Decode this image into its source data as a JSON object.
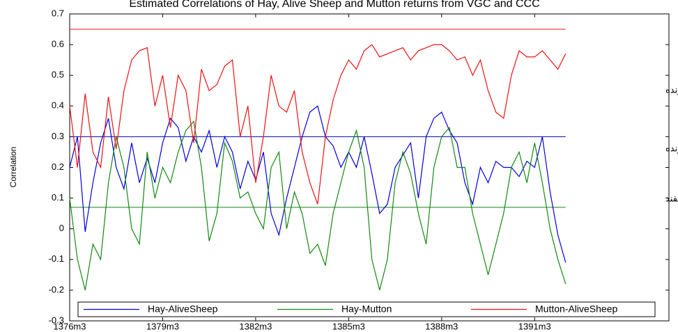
{
  "chart_data": {
    "type": "line",
    "title": "Estimated Correlations of Hay, Alive Sheep and Mutton returns from VGC and CCC",
    "ylabel": "Correlation",
    "x": [
      0,
      3,
      6,
      9,
      12,
      15,
      18,
      21,
      24,
      27,
      30,
      33,
      36,
      39,
      42,
      45,
      48,
      51,
      54,
      57,
      60,
      63,
      66,
      69,
      72,
      75,
      78,
      81,
      84,
      87,
      90,
      93,
      96,
      99,
      102,
      105,
      108,
      111,
      114,
      117,
      120,
      123,
      126,
      129,
      132,
      135,
      138,
      141,
      144,
      147,
      150,
      153,
      156,
      159,
      162,
      165,
      168,
      171,
      174,
      177,
      180,
      183,
      186,
      189,
      192
    ],
    "xlim": [
      0,
      232
    ],
    "xticks": [
      {
        "value": 0,
        "label": "1376m3"
      },
      {
        "value": 36,
        "label": "1379m3"
      },
      {
        "value": 72,
        "label": "1382m3"
      },
      {
        "value": 108,
        "label": "1385m3"
      },
      {
        "value": 144,
        "label": "1388m3"
      },
      {
        "value": 180,
        "label": "1391m3"
      }
    ],
    "ylim": [
      -0.3,
      0.7
    ],
    "yticks": [
      -0.3,
      -0.2,
      -0.1,
      0,
      0.1,
      0.2,
      0.3,
      0.4,
      0.5,
      0.6,
      0.7
    ],
    "series": [
      {
        "name": "Hay-AliveSheep",
        "color": "#0000dd",
        "values": [
          0.2,
          0.3,
          -0.01,
          0.15,
          0.28,
          0.36,
          0.2,
          0.13,
          0.28,
          0.15,
          0.23,
          0.15,
          0.28,
          0.36,
          0.33,
          0.22,
          0.3,
          0.25,
          0.32,
          0.2,
          0.3,
          0.25,
          0.13,
          0.22,
          0.16,
          0.25,
          0.05,
          -0.02,
          0.1,
          0.2,
          0.3,
          0.38,
          0.4,
          0.3,
          0.27,
          0.2,
          0.25,
          0.2,
          0.3,
          0.18,
          0.05,
          0.08,
          0.2,
          0.24,
          0.28,
          0.1,
          0.3,
          0.36,
          0.38,
          0.32,
          0.28,
          0.15,
          0.08,
          0.2,
          0.15,
          0.22,
          0.2,
          0.2,
          0.17,
          0.22,
          0.2,
          0.3,
          0.12,
          -0.02,
          -0.11
        ]
      },
      {
        "name": "Hay-Mutton",
        "color": "#118811",
        "values": [
          0.1,
          -0.1,
          -0.2,
          -0.05,
          -0.1,
          0.15,
          0.3,
          0.2,
          0.0,
          -0.05,
          0.25,
          0.1,
          0.2,
          0.15,
          0.25,
          0.32,
          0.35,
          0.2,
          -0.04,
          0.05,
          0.28,
          0.22,
          0.1,
          0.12,
          0.05,
          0.0,
          0.2,
          0.25,
          0.0,
          0.12,
          0.05,
          -0.08,
          -0.05,
          -0.12,
          0.05,
          0.15,
          0.25,
          0.32,
          0.2,
          -0.1,
          -0.2,
          -0.1,
          0.15,
          0.25,
          0.18,
          0.05,
          -0.05,
          0.2,
          0.3,
          0.33,
          0.2,
          0.2,
          0.05,
          -0.05,
          -0.15,
          -0.05,
          0.05,
          0.2,
          0.25,
          0.15,
          0.28,
          0.15,
          0.0,
          -0.1,
          -0.18
        ]
      },
      {
        "name": "Mutton-AliveSheep",
        "color": "#ee1111",
        "values": [
          0.4,
          0.2,
          0.44,
          0.25,
          0.2,
          0.43,
          0.26,
          0.45,
          0.55,
          0.58,
          0.59,
          0.4,
          0.5,
          0.33,
          0.5,
          0.45,
          0.28,
          0.52,
          0.45,
          0.47,
          0.53,
          0.55,
          0.3,
          0.4,
          0.15,
          0.3,
          0.5,
          0.4,
          0.38,
          0.45,
          0.25,
          0.15,
          0.08,
          0.3,
          0.42,
          0.5,
          0.55,
          0.52,
          0.58,
          0.6,
          0.56,
          0.57,
          0.58,
          0.59,
          0.55,
          0.58,
          0.59,
          0.6,
          0.6,
          0.58,
          0.55,
          0.56,
          0.5,
          0.55,
          0.45,
          0.38,
          0.36,
          0.5,
          0.58,
          0.56,
          0.56,
          0.58,
          0.55,
          0.52,
          0.57
        ]
      }
    ],
    "reference_lines": [
      {
        "value": 0.65,
        "color": "#ee1111"
      },
      {
        "value": 0.3,
        "color": "#0000aa"
      },
      {
        "value": 0.07,
        "color": "#118811"
      }
    ],
    "annotations": [
      "گوشت گوسفند-گوسفند زنده",
      "علوفه-گوسفند زنده",
      "علوفه-گوشت گوسفند"
    ]
  }
}
